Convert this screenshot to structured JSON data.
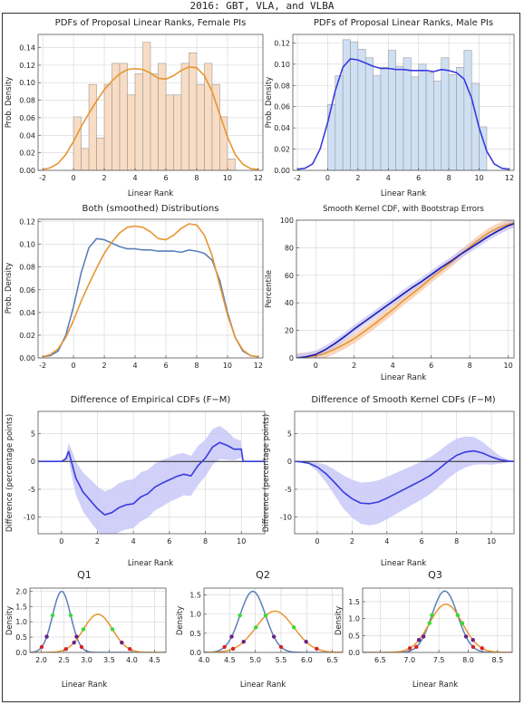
{
  "page": {
    "title": "2016: GBT, VLA, and VLBA"
  },
  "colors": {
    "female": "#e89530",
    "male": "#5b7fb8",
    "female_fill": "#f8dcc3",
    "male_fill": "#cfe0f4",
    "male_strong": "#3a3ae0",
    "cdf_navy": "#1a1ab0",
    "band_blue": "#c8c8f8",
    "band_orange": "#f8c9a6",
    "grid": "#d4d4d4",
    "quantile_green": "#33dd33",
    "quantile_purple": "#662288",
    "quantile_red": "#dd2222"
  },
  "chart_data": [
    {
      "id": "female-hist",
      "type": "bar",
      "title": "PDFs of Proposal Linear Ranks, Female PIs",
      "xlabel": "Linear Rank",
      "ylabel": "Prob. Density",
      "xlim": [
        -2.3,
        12.3
      ],
      "ylim": [
        0,
        0.155
      ],
      "xticks": [
        -2,
        0,
        2,
        4,
        6,
        8,
        10,
        12
      ],
      "yticks": [
        0,
        0.02,
        0.04,
        0.06,
        0.08,
        0.1,
        0.12,
        0.14
      ],
      "ytick_labels": [
        "0.00",
        "0.02",
        "0.04",
        "0.06",
        "0.08",
        "0.10",
        "0.12",
        "0.14"
      ],
      "grid": true,
      "bin_width": 0.5,
      "bins": [
        {
          "x0": 0,
          "h": 0.061
        },
        {
          "x0": 0.5,
          "h": 0.025
        },
        {
          "x0": 1,
          "h": 0.098
        },
        {
          "x0": 1.5,
          "h": 0.037
        },
        {
          "x0": 2,
          "h": 0.098
        },
        {
          "x0": 2.5,
          "h": 0.122
        },
        {
          "x0": 3,
          "h": 0.122
        },
        {
          "x0": 3.5,
          "h": 0.086
        },
        {
          "x0": 4,
          "h": 0.11
        },
        {
          "x0": 4.5,
          "h": 0.146
        },
        {
          "x0": 5,
          "h": 0.11
        },
        {
          "x0": 5.5,
          "h": 0.122
        },
        {
          "x0": 6,
          "h": 0.086
        },
        {
          "x0": 6.5,
          "h": 0.086
        },
        {
          "x0": 7,
          "h": 0.122
        },
        {
          "x0": 7.5,
          "h": 0.134
        },
        {
          "x0": 8,
          "h": 0.098
        },
        {
          "x0": 8.5,
          "h": 0.122
        },
        {
          "x0": 9,
          "h": 0.098
        },
        {
          "x0": 9.5,
          "h": 0.061
        },
        {
          "x0": 10,
          "h": 0.013
        }
      ],
      "curve": {
        "x": [
          -2,
          -1.5,
          -1,
          -0.5,
          0,
          0.5,
          1,
          1.5,
          2,
          2.5,
          3,
          3.5,
          4,
          4.5,
          5,
          5.5,
          6,
          6.5,
          7,
          7.5,
          8,
          8.5,
          9,
          9.5,
          10,
          10.5,
          11,
          11.5,
          12
        ],
        "y": [
          0.001,
          0.003,
          0.008,
          0.018,
          0.033,
          0.05,
          0.065,
          0.079,
          0.092,
          0.102,
          0.11,
          0.115,
          0.116,
          0.115,
          0.111,
          0.105,
          0.104,
          0.108,
          0.114,
          0.118,
          0.117,
          0.108,
          0.09,
          0.064,
          0.038,
          0.018,
          0.007,
          0.002,
          0.001
        ]
      }
    },
    {
      "id": "male-hist",
      "type": "bar",
      "title": "PDFs of Proposal Linear Ranks, Male PIs",
      "xlabel": "Linear Rank",
      "ylabel": "Prob. Density",
      "xlim": [
        -2.3,
        12.3
      ],
      "ylim": [
        0,
        0.128
      ],
      "xticks": [
        -2,
        0,
        2,
        4,
        6,
        8,
        10,
        12
      ],
      "yticks": [
        0,
        0.02,
        0.04,
        0.06,
        0.08,
        0.1,
        0.12
      ],
      "ytick_labels": [
        "0.00",
        "0.02",
        "0.04",
        "0.06",
        "0.08",
        "0.10",
        "0.12"
      ],
      "grid": true,
      "bin_width": 0.5,
      "bins": [
        {
          "x0": 0,
          "h": 0.062
        },
        {
          "x0": 0.5,
          "h": 0.089
        },
        {
          "x0": 1,
          "h": 0.123
        },
        {
          "x0": 1.5,
          "h": 0.121
        },
        {
          "x0": 2,
          "h": 0.114
        },
        {
          "x0": 2.5,
          "h": 0.106
        },
        {
          "x0": 3,
          "h": 0.089
        },
        {
          "x0": 3.5,
          "h": 0.097
        },
        {
          "x0": 4,
          "h": 0.113
        },
        {
          "x0": 4.5,
          "h": 0.098
        },
        {
          "x0": 5,
          "h": 0.106
        },
        {
          "x0": 5.5,
          "h": 0.088
        },
        {
          "x0": 6,
          "h": 0.1
        },
        {
          "x0": 6.5,
          "h": 0.092
        },
        {
          "x0": 7,
          "h": 0.084
        },
        {
          "x0": 7.5,
          "h": 0.106
        },
        {
          "x0": 8,
          "h": 0.09
        },
        {
          "x0": 8.5,
          "h": 0.097
        },
        {
          "x0": 9,
          "h": 0.113
        },
        {
          "x0": 9.5,
          "h": 0.082
        },
        {
          "x0": 10,
          "h": 0.041
        }
      ],
      "curve": {
        "x": [
          -2,
          -1.5,
          -1,
          -0.5,
          0,
          0.5,
          1,
          1.5,
          2,
          2.5,
          3,
          3.5,
          4,
          4.5,
          5,
          5.5,
          6,
          6.5,
          7,
          7.5,
          8,
          8.5,
          9,
          9.5,
          10,
          10.5,
          11,
          11.5,
          12
        ],
        "y": [
          0.001,
          0.002,
          0.006,
          0.02,
          0.045,
          0.075,
          0.097,
          0.105,
          0.104,
          0.101,
          0.098,
          0.096,
          0.096,
          0.095,
          0.095,
          0.094,
          0.094,
          0.094,
          0.093,
          0.095,
          0.094,
          0.092,
          0.086,
          0.068,
          0.04,
          0.018,
          0.006,
          0.002,
          0.001
        ]
      }
    },
    {
      "id": "both-smoothed",
      "type": "line",
      "title": "Both (smoothed) Distributions",
      "xlabel": "",
      "ylabel": "Prob. Density",
      "xlim": [
        -2.3,
        12.3
      ],
      "ylim": [
        0,
        0.122
      ],
      "xticks": [
        -2,
        0,
        2,
        4,
        6,
        8,
        10,
        12
      ],
      "yticks": [
        0,
        0.02,
        0.04,
        0.06,
        0.08,
        0.1,
        0.12
      ],
      "ytick_labels": [
        "0.00",
        "0.02",
        "0.04",
        "0.06",
        "0.08",
        "0.10",
        "0.12"
      ],
      "grid": true,
      "series": [
        {
          "color_key": "male",
          "x": [
            -2,
            -1.5,
            -1,
            -0.5,
            0,
            0.5,
            1,
            1.5,
            2,
            2.5,
            3,
            3.5,
            4,
            4.5,
            5,
            5.5,
            6,
            6.5,
            7,
            7.5,
            8,
            8.5,
            9,
            9.5,
            10,
            10.5,
            11,
            11.5,
            12
          ],
          "y": [
            0.001,
            0.002,
            0.006,
            0.02,
            0.045,
            0.075,
            0.097,
            0.105,
            0.104,
            0.101,
            0.098,
            0.096,
            0.096,
            0.095,
            0.095,
            0.094,
            0.094,
            0.094,
            0.093,
            0.095,
            0.094,
            0.092,
            0.086,
            0.068,
            0.04,
            0.018,
            0.006,
            0.002,
            0.001
          ]
        },
        {
          "color_key": "female",
          "x": [
            -2,
            -1.5,
            -1,
            -0.5,
            0,
            0.5,
            1,
            1.5,
            2,
            2.5,
            3,
            3.5,
            4,
            4.5,
            5,
            5.5,
            6,
            6.5,
            7,
            7.5,
            8,
            8.5,
            9,
            9.5,
            10,
            10.5,
            11,
            11.5,
            12
          ],
          "y": [
            0.001,
            0.003,
            0.008,
            0.018,
            0.033,
            0.05,
            0.065,
            0.079,
            0.092,
            0.102,
            0.11,
            0.115,
            0.116,
            0.115,
            0.111,
            0.105,
            0.104,
            0.108,
            0.114,
            0.118,
            0.117,
            0.108,
            0.09,
            0.064,
            0.038,
            0.018,
            0.007,
            0.002,
            0.001
          ]
        }
      ]
    },
    {
      "id": "cdf",
      "type": "line",
      "title": "Smooth Kernel CDF, with Bootstrap Errors",
      "xlabel": "Linear Rank",
      "ylabel": "Percentile",
      "xlim": [
        -1,
        10.3
      ],
      "ylim": [
        0,
        100
      ],
      "xticks": [
        0,
        2,
        4,
        6,
        8,
        10
      ],
      "yticks": [
        0,
        20,
        40,
        60,
        80,
        100
      ],
      "grid": true,
      "series": [
        {
          "color_key": "female",
          "band_key": "band_orange",
          "band": 3.5,
          "x": [
            -1,
            -0.5,
            0,
            0.5,
            1,
            1.5,
            2,
            2.5,
            3,
            3.5,
            4,
            4.5,
            5,
            5.5,
            6,
            6.5,
            7,
            7.5,
            8,
            8.5,
            9,
            9.5,
            10,
            10.3
          ],
          "y": [
            0,
            0.5,
            1.5,
            3.5,
            6.5,
            10,
            14,
            19,
            24,
            29.5,
            35,
            41,
            46.5,
            52,
            58,
            63.5,
            69,
            75,
            80.5,
            86,
            91,
            94.5,
            97,
            98
          ]
        },
        {
          "color_key": "cdf_navy",
          "band_key": "band_blue",
          "band": 3,
          "x": [
            -1,
            -0.5,
            0,
            0.5,
            1,
            1.5,
            2,
            2.5,
            3,
            3.5,
            4,
            4.5,
            5,
            5.5,
            6,
            6.5,
            7,
            7.5,
            8,
            8.5,
            9,
            9.5,
            10,
            10.3
          ],
          "y": [
            0,
            0.8,
            2.5,
            6,
            10.5,
            15.5,
            21,
            26,
            31,
            36,
            41,
            46,
            51,
            55.5,
            60.5,
            65.5,
            70,
            75,
            79.5,
            84,
            88.5,
            92.5,
            96,
            97.5
          ]
        }
      ]
    },
    {
      "id": "diff-empirical",
      "type": "line",
      "title": "Difference of Empirical CDFs (F−M)",
      "xlabel": "Linear Rank",
      "ylabel": "Difference (percentage points)",
      "xlim": [
        -1.3,
        11.3
      ],
      "ylim": [
        -13,
        9
      ],
      "xticks": [
        0,
        2,
        4,
        6,
        8,
        10
      ],
      "yticks": [
        -10,
        -5,
        0,
        5
      ],
      "grid": true,
      "series": [
        {
          "color_key": "male_strong",
          "band_key": "band_blue",
          "x": [
            -1.3,
            0,
            0.25,
            0.4,
            0.55,
            0.8,
            1.2,
            1.6,
            2,
            2.4,
            2.8,
            3.2,
            3.6,
            4,
            4.4,
            4.8,
            5.2,
            5.6,
            6,
            6.4,
            6.8,
            7.2,
            7.6,
            8,
            8.4,
            8.8,
            9.2,
            9.6,
            10,
            10.1,
            11.3
          ],
          "y": [
            0,
            0,
            0.5,
            1.8,
            0,
            -3,
            -5.5,
            -7,
            -8.5,
            -9.6,
            -9.2,
            -8.3,
            -7.8,
            -7.6,
            -6.4,
            -5.8,
            -4.6,
            -3.9,
            -3.3,
            -2.7,
            -2.3,
            -2.6,
            -0.7,
            0.6,
            2.6,
            3.4,
            2.9,
            2.2,
            2.2,
            0,
            0
          ],
          "band_half": [
            0,
            0,
            0.5,
            1.5,
            2.2,
            3,
            3.5,
            3.8,
            4,
            4.2,
            4.3,
            4.4,
            4.4,
            4.4,
            4.4,
            4.3,
            4.2,
            4.2,
            4,
            4,
            3.8,
            3.6,
            3.5,
            3.3,
            3.2,
            3,
            2.6,
            2,
            1.5,
            0,
            0
          ]
        }
      ]
    },
    {
      "id": "diff-smooth",
      "type": "line",
      "title": "Difference of Smooth Kernel CDFs (F−M)",
      "xlabel": "Linear Rank",
      "ylabel": "Difference (percentage points)",
      "xlim": [
        -1.3,
        11.3
      ],
      "ylim": [
        -13,
        9
      ],
      "xticks": [
        0,
        2,
        4,
        6,
        8,
        10
      ],
      "yticks": [
        -10,
        -5,
        0,
        5
      ],
      "grid": true,
      "series": [
        {
          "color_key": "male_strong",
          "band_key": "band_blue",
          "x": [
            -1.3,
            -1,
            -0.5,
            0,
            0.5,
            1,
            1.5,
            2,
            2.5,
            3,
            3.5,
            4,
            4.5,
            5,
            5.5,
            6,
            6.5,
            7,
            7.5,
            8,
            8.5,
            9,
            9.5,
            10,
            10.5,
            11,
            11.3
          ],
          "y": [
            0,
            -0.05,
            -0.3,
            -1,
            -2.2,
            -3.8,
            -5.5,
            -6.7,
            -7.5,
            -7.6,
            -7.3,
            -6.6,
            -5.8,
            -5,
            -4.2,
            -3.4,
            -2.5,
            -1.3,
            0,
            1.1,
            1.7,
            1.9,
            1.5,
            0.8,
            0.3,
            0.05,
            0
          ],
          "band_half": [
            0,
            0.05,
            0.2,
            0.8,
            1.6,
            2.3,
            3,
            3.4,
            3.7,
            3.9,
            3.9,
            3.8,
            3.7,
            3.6,
            3.5,
            3.4,
            3.3,
            3.2,
            3.1,
            3,
            2.8,
            2.5,
            2,
            1.4,
            0.7,
            0.2,
            0
          ]
        }
      ]
    },
    {
      "id": "q1",
      "type": "line",
      "title": "Q1",
      "xlabel": "Linear Rank",
      "ylabel": "Density",
      "xlim": [
        1.75,
        4.75
      ],
      "ylim": [
        0,
        2.1
      ],
      "xticks": [
        2,
        2.5,
        3,
        3.5,
        4,
        4.5
      ],
      "xtick_labels": [
        "2.0",
        "2.5",
        "3.0",
        "3.5",
        "4.0",
        "4.5"
      ],
      "yticks": [
        0,
        0.5,
        1,
        1.5,
        2
      ],
      "ytick_labels": [
        "0.0",
        "0.5",
        "1.0",
        "1.5",
        "2.0"
      ],
      "grid": true,
      "series": [
        {
          "color_key": "male",
          "mu": 2.45,
          "sigma": 0.2
        },
        {
          "color_key": "female",
          "mu": 3.25,
          "sigma": 0.32
        }
      ]
    },
    {
      "id": "q2",
      "type": "line",
      "title": "Q2",
      "xlabel": "Linear Rank",
      "ylabel": "Density",
      "xlim": [
        4.0,
        6.7
      ],
      "ylim": [
        0,
        1.68
      ],
      "xticks": [
        4,
        4.5,
        5,
        5.5,
        6,
        6.5
      ],
      "xtick_labels": [
        "4.0",
        "4.5",
        "5.0",
        "5.5",
        "6.0",
        "6.5"
      ],
      "yticks": [
        0,
        0.5,
        1,
        1.5
      ],
      "ytick_labels": [
        "0.0",
        "0.5",
        "1.0",
        "1.5"
      ],
      "grid": true,
      "series": [
        {
          "color_key": "male",
          "mu": 4.95,
          "sigma": 0.25
        },
        {
          "color_key": "female",
          "mu": 5.38,
          "sigma": 0.37
        }
      ]
    },
    {
      "id": "q3",
      "type": "line",
      "title": "Q3",
      "xlabel": "Linear Rank",
      "ylabel": "Density",
      "xlim": [
        6.2,
        8.75
      ],
      "ylim": [
        0,
        1.9
      ],
      "xticks": [
        6.5,
        7,
        7.5,
        8,
        8.5
      ],
      "xtick_labels": [
        "6.5",
        "7.0",
        "7.5",
        "8.0",
        "8.5"
      ],
      "yticks": [
        0,
        0.5,
        1,
        1.5
      ],
      "ytick_labels": [
        "0.0",
        "0.5",
        "1.0",
        "1.5"
      ],
      "grid": true,
      "series": [
        {
          "color_key": "male",
          "mu": 7.6,
          "sigma": 0.22
        },
        {
          "color_key": "female",
          "mu": 7.62,
          "sigma": 0.28
        }
      ]
    }
  ]
}
